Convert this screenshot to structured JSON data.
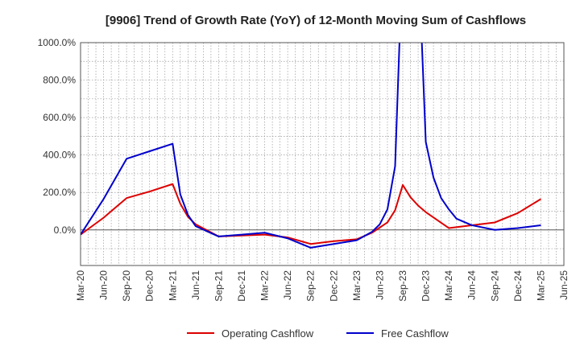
{
  "chart_data": {
    "type": "line",
    "title": "[9906]  Trend of Growth Rate (YoY) of 12-Month Moving Sum of Cashflows",
    "xlabel": "",
    "ylabel": "",
    "ylim": [
      -190,
      1000
    ],
    "y_ticks": [
      0,
      200,
      400,
      600,
      800,
      1000
    ],
    "y_tick_labels": [
      "0.0%",
      "200.0%",
      "400.0%",
      "600.0%",
      "800.0%",
      "1000.0%"
    ],
    "x_tick_labels": [
      "Mar-20",
      "Jun-20",
      "Sep-20",
      "Dec-20",
      "Mar-21",
      "Jun-21",
      "Sep-21",
      "Dec-21",
      "Mar-22",
      "Jun-22",
      "Sep-22",
      "Dec-22",
      "Mar-23",
      "Jun-23",
      "Sep-23",
      "Dec-23",
      "Mar-24",
      "Jun-24",
      "Sep-24",
      "Dec-24",
      "Mar-25",
      "Jun-25"
    ],
    "grid": true,
    "legend_position": "bottom",
    "colors": {
      "operating": "#dd0000",
      "free": "#0000cc"
    },
    "series": [
      {
        "name": "Operating Cashflow",
        "color": "#dd0000",
        "points": [
          [
            "2020-03",
            -25
          ],
          [
            "2020-06",
            65
          ],
          [
            "2020-09",
            170
          ],
          [
            "2020-12",
            205
          ],
          [
            "2021-03",
            245
          ],
          [
            "2021-04",
            140
          ],
          [
            "2021-05",
            70
          ],
          [
            "2021-06",
            30
          ],
          [
            "2021-09",
            -35
          ],
          [
            "2021-12",
            -30
          ],
          [
            "2022-03",
            -25
          ],
          [
            "2022-06",
            -40
          ],
          [
            "2022-09",
            -75
          ],
          [
            "2022-12",
            -60
          ],
          [
            "2023-03",
            -50
          ],
          [
            "2023-05",
            -15
          ],
          [
            "2023-07",
            40
          ],
          [
            "2023-08",
            105
          ],
          [
            "2023-09",
            240
          ],
          [
            "2023-10",
            175
          ],
          [
            "2023-11",
            130
          ],
          [
            "2023-12",
            95
          ],
          [
            "2024-03",
            10
          ],
          [
            "2024-06",
            25
          ],
          [
            "2024-09",
            40
          ],
          [
            "2024-12",
            90
          ],
          [
            "2025-03",
            165
          ]
        ]
      },
      {
        "name": "Free Cashflow",
        "color": "#0000cc",
        "points": [
          [
            "2020-03",
            -25
          ],
          [
            "2020-06",
            165
          ],
          [
            "2020-09",
            380
          ],
          [
            "2020-12",
            420
          ],
          [
            "2021-03",
            460
          ],
          [
            "2021-04",
            190
          ],
          [
            "2021-05",
            80
          ],
          [
            "2021-06",
            20
          ],
          [
            "2021-09",
            -35
          ],
          [
            "2021-12",
            -25
          ],
          [
            "2022-03",
            -15
          ],
          [
            "2022-06",
            -45
          ],
          [
            "2022-09",
            -95
          ],
          [
            "2022-12",
            -75
          ],
          [
            "2023-03",
            -55
          ],
          [
            "2023-05",
            -10
          ],
          [
            "2023-06",
            30
          ],
          [
            "2023-07",
            110
          ],
          [
            "2023-08",
            340
          ],
          [
            "2023-09",
            1500
          ],
          [
            "2023-11",
            1500
          ],
          [
            "2023-12",
            470
          ],
          [
            "2024-01",
            280
          ],
          [
            "2024-02",
            170
          ],
          [
            "2024-03",
            110
          ],
          [
            "2024-04",
            60
          ],
          [
            "2024-06",
            25
          ],
          [
            "2024-09",
            0
          ],
          [
            "2024-12",
            10
          ],
          [
            "2025-03",
            25
          ]
        ]
      }
    ]
  }
}
